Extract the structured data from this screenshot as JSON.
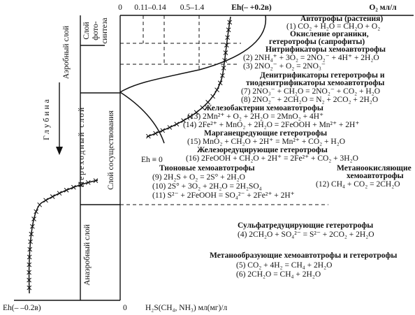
{
  "axis_top": {
    "labels": [
      "0",
      "0.11–0.14",
      "0.5–1.4",
      "Eh(– +0.2в)",
      "O₂ мл/л"
    ]
  },
  "axis_bottom": {
    "labels": [
      "Eh(– –0.2в)",
      "0",
      "H₂S(CH₄, NH₃) мл(мг)/л"
    ]
  },
  "eh_zero": "Eh ≡ 0",
  "layers": {
    "aerobic": "Аэробный слой",
    "photosynthesis": [
      "Слой",
      "фото-",
      "синтеза"
    ],
    "depth": "Глубина",
    "transition": "Переходный слой",
    "coexistence": "Слой сосуществования",
    "anaerobic": "Анаэробный слой"
  },
  "blocks": [
    {
      "title": [
        "Автотрофы (растения)"
      ],
      "reactions": [
        "(1) CO₂ + H₂O = CH₂O + O₂"
      ]
    },
    {
      "title": [
        "Окисление органики,",
        "гетеротрофы (сапрофиты)"
      ],
      "reactions": []
    },
    {
      "title": [
        "Нитрификаторы хемоавтотрофы"
      ],
      "reactions": [
        "(2) 2NH₄⁺ + 3O₂ =  2NO₂⁻ + 4H⁺ + 2H₂O",
        "(3) 2NO₂⁻ + O₂ = 2NO₃⁻"
      ]
    },
    {
      "title": [
        "Денитрификаторы гетеротрофы и",
        "тиоденитрификаторы хемоавтотрофы"
      ],
      "reactions": [
        "(7) 2NO₃⁻ + CH₂O = 2NO₂⁻ + CO₂ + H₂O",
        "(8) 2NO₂⁻ + 2CH₂O = N₂ + 2CO₂ + 2H₂O"
      ]
    },
    {
      "title": [
        "Железобактерии хемоавтотрофы"
      ],
      "reactions": [
        "(13) 2Mn²⁺ + O₂ + 2H₂O = 2MnO₂ + 4H⁺",
        "(14) 2Fe²⁺ + MnO₂ + 2H₂O = 2FeOOH + Mn²⁺ + 2H⁺"
      ]
    },
    {
      "title": [
        "Марганецредующие гетеротрофы"
      ],
      "reactions": [
        "(15) MnO₂ + CH₂O + 2H⁺ = Mn²⁺ + CO₂ + H₂O"
      ]
    },
    {
      "title": [
        "Железоредуцирующие гетеротрофы"
      ],
      "reactions": [
        "(16) 2FeOOH + CH₂O + 2H⁺ = 2Fe²⁺ + CO₂ + 3H₂O"
      ]
    },
    {
      "title": [
        "Тионовые хемоавтотрофы"
      ],
      "reactions": [
        "(9) 2H₂S + O₂ = 2S° + 2H₂O",
        "(10) 2S° + 3O₂ + 2H₂O = 2H₂SO₄",
        "(11) S²⁻ + 2FeOOH = SO₄²⁻ + 2Fe²⁺ + 2H⁺"
      ]
    },
    {
      "title": [
        "Метаноокисляющие",
        "хемоавтотрофы"
      ],
      "reactions": [
        "(12) CH₄ + CO₂ = 2CH₂O"
      ]
    },
    {
      "title": [
        "Сульфатредуцирующие гетеротрофы"
      ],
      "reactions": [
        "(4) 2CH₂O + SO₄²⁻ = S²⁻ + 2CO₂ + 2H₂O"
      ]
    },
    {
      "title": [
        "Метанообразующие хемоавтотрофы и гетеротрофы"
      ],
      "reactions": [
        "(5) CO₂ + 4H₂ = CH₄ + 2H₂O",
        "(6) 2CH₂O = CH₄ + 2H₂O"
      ]
    }
  ]
}
